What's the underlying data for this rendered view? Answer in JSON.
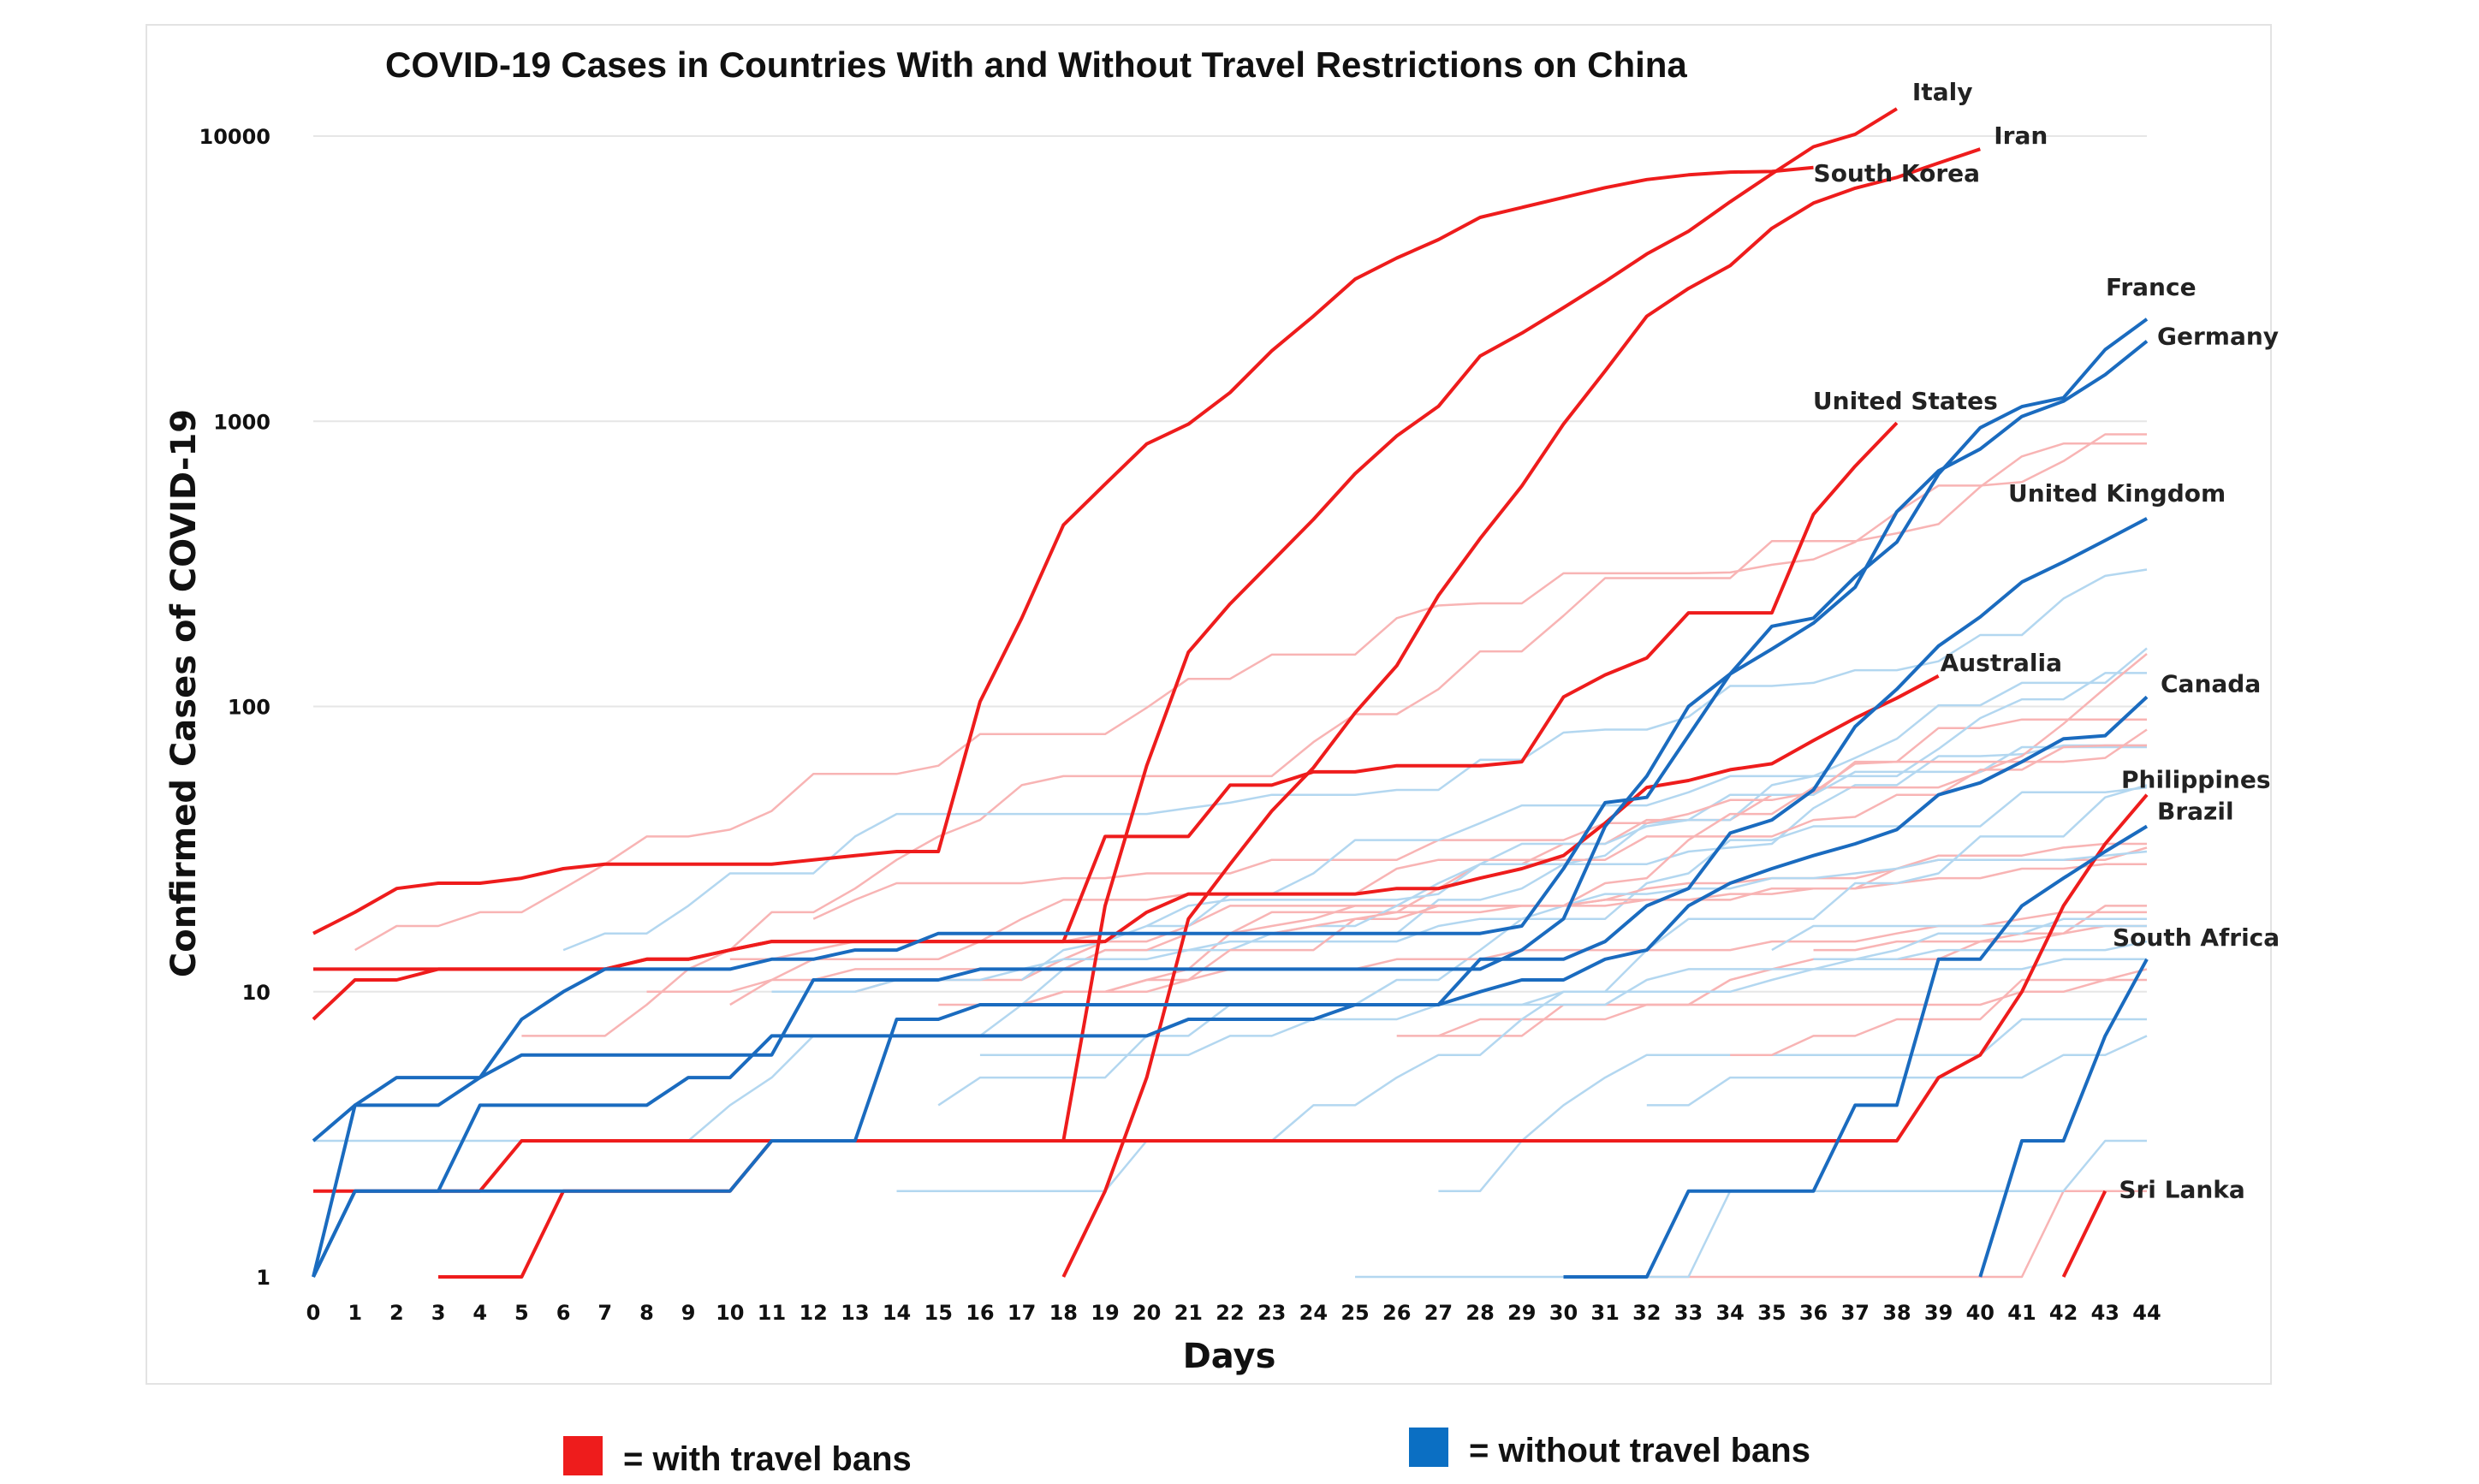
{
  "chart_data": {
    "type": "line",
    "title": "COVID-19 Cases in Countries With and Without Travel Restrictions on China",
    "xlabel": "Days",
    "ylabel": "Confirmed Cases of COVID-19",
    "y_scale": "log",
    "ylim": [
      1,
      13000
    ],
    "xlim": [
      0,
      44
    ],
    "x_ticks": [
      "0",
      "1",
      "2",
      "3",
      "4",
      "5",
      "6",
      "7",
      "8",
      "9",
      "10",
      "11",
      "12",
      "13",
      "14",
      "15",
      "16",
      "17",
      "18",
      "19",
      "20",
      "21",
      "22",
      "23",
      "24",
      "25",
      "26",
      "27",
      "28",
      "29",
      "30",
      "31",
      "32",
      "33",
      "34",
      "35",
      "36",
      "37",
      "38",
      "39",
      "40",
      "41",
      "42",
      "43",
      "44"
    ],
    "y_ticks": [
      "1",
      "10",
      "100",
      "1000",
      "10000"
    ],
    "grid": true,
    "colors": {
      "with_ban": "#ee1c1c",
      "without_ban": "#1a6bbf",
      "with_ban_light": "#f8b4b4",
      "without_ban_light": "#b3d7f0"
    },
    "legend": [
      {
        "label": "= with travel bans",
        "color": "#ee1c1c"
      },
      {
        "label": "= without travel bans",
        "color": "#0b6fc3"
      }
    ],
    "series": [
      {
        "label": "Italy",
        "group": "with",
        "x": [
          18,
          19,
          20,
          21,
          22,
          23,
          24,
          25,
          26,
          27,
          28,
          29,
          30,
          31,
          32,
          33,
          34,
          35,
          36,
          37,
          38
        ],
        "y": [
          3,
          20,
          62,
          155,
          229,
          322,
          453,
          655,
          888,
          1128,
          1694,
          2036,
          2502,
          3089,
          3858,
          4636,
          5883,
          7375,
          9172,
          10149,
          12462
        ]
      },
      {
        "label": "Iran",
        "group": "with",
        "x": [
          18,
          19,
          20,
          21,
          22,
          23,
          24,
          25,
          26,
          27,
          28,
          29,
          30,
          31,
          32,
          33,
          34,
          35,
          36,
          37,
          38,
          39,
          40
        ],
        "y": [
          1,
          2,
          5,
          18,
          28,
          43,
          61,
          95,
          139,
          245,
          388,
          593,
          978,
          1501,
          2336,
          2922,
          3513,
          4747,
          5823,
          6566,
          7161,
          8042,
          9000
        ]
      },
      {
        "label": "South Korea",
        "group": "with",
        "x": [
          0,
          1,
          2,
          3,
          4,
          5,
          6,
          7,
          8,
          9,
          10,
          11,
          12,
          13,
          14,
          15,
          16,
          17,
          18,
          19,
          20,
          21,
          22,
          23,
          24,
          25,
          26,
          27,
          28,
          29,
          30,
          31,
          32,
          33,
          34,
          35,
          36
        ],
        "y": [
          16,
          19,
          23,
          24,
          24,
          25,
          27,
          28,
          28,
          28,
          28,
          28,
          29,
          30,
          31,
          31,
          104,
          204,
          433,
          602,
          833,
          977,
          1261,
          1766,
          2337,
          3150,
          3736,
          4335,
          5186,
          5621,
          6088,
          6593,
          7041,
          7314,
          7478,
          7513,
          7755
        ]
      },
      {
        "label": "United States",
        "group": "with",
        "x": [
          0,
          1,
          2,
          3,
          4,
          5,
          6,
          7,
          8,
          9,
          10,
          11,
          12,
          13,
          14,
          15,
          16,
          17,
          18,
          19,
          20,
          21,
          22,
          23,
          24,
          25,
          26,
          27,
          28,
          29,
          30,
          31,
          32,
          33,
          34,
          35,
          36,
          37,
          38
        ],
        "y": [
          12,
          12,
          12,
          12,
          12,
          12,
          12,
          12,
          13,
          13,
          14,
          15,
          15,
          15,
          15,
          15,
          15,
          15,
          15,
          35,
          35,
          35,
          53,
          53,
          59,
          59,
          62,
          62,
          62,
          64,
          108,
          129,
          148,
          213,
          213,
          213,
          472,
          696,
          987
        ]
      },
      {
        "label": "Australia",
        "group": "with",
        "x": [
          0,
          1,
          2,
          3,
          4,
          5,
          6,
          7,
          8,
          9,
          10,
          11,
          12,
          13,
          14,
          15,
          16,
          17,
          18,
          19,
          20,
          21,
          22,
          23,
          24,
          25,
          26,
          27,
          28,
          29,
          30,
          31,
          32,
          33,
          34,
          35,
          36,
          37,
          38,
          39
        ],
        "y": [
          8,
          11,
          11,
          12,
          12,
          12,
          12,
          12,
          13,
          13,
          14,
          15,
          15,
          15,
          15,
          15,
          15,
          15,
          15,
          15,
          19,
          22,
          22,
          22,
          22,
          22,
          23,
          23,
          25,
          27,
          30,
          39,
          52,
          55,
          60,
          63,
          76,
          91,
          107,
          128
        ]
      },
      {
        "label": "Philippines",
        "group": "with",
        "x": [
          0,
          1,
          2,
          3,
          4,
          5,
          6,
          7,
          8,
          9,
          10,
          11,
          12,
          13,
          14,
          15,
          16,
          17,
          18,
          19,
          20,
          21,
          22,
          23,
          24,
          25,
          26,
          27,
          28,
          29,
          30,
          31,
          32,
          33,
          34,
          35,
          36,
          37,
          38,
          39,
          40,
          41,
          42,
          43,
          44
        ],
        "y": [
          2,
          2,
          2,
          2,
          2,
          3,
          3,
          3,
          3,
          3,
          3,
          3,
          3,
          3,
          3,
          3,
          3,
          3,
          3,
          3,
          3,
          3,
          3,
          3,
          3,
          3,
          3,
          3,
          3,
          3,
          3,
          3,
          3,
          3,
          3,
          3,
          3,
          3,
          3,
          5,
          6,
          10,
          20,
          33,
          49
        ]
      },
      {
        "label": "",
        "group": "with",
        "x": [
          3,
          4,
          5,
          6,
          7,
          8,
          9,
          10,
          11,
          12,
          13,
          14,
          15,
          16,
          17,
          18,
          19,
          20,
          21,
          22,
          23,
          24,
          25,
          26,
          27,
          28,
          29,
          30,
          31
        ],
        "y": [
          1,
          1,
          1,
          2,
          2,
          2,
          2,
          2,
          3,
          3,
          3,
          3,
          3,
          3,
          3,
          3,
          3,
          3,
          3,
          3,
          3,
          3,
          3,
          3,
          3,
          3,
          3,
          3,
          3
        ]
      },
      {
        "label": "Sri Lanka",
        "group": "with",
        "x": [
          42,
          43
        ],
        "y": [
          1,
          2
        ]
      },
      {
        "label": "France",
        "group": "without",
        "x": [
          0,
          1,
          2,
          3,
          4,
          5,
          6,
          7,
          8,
          9,
          10,
          11,
          12,
          13,
          14,
          15,
          16,
          17,
          18,
          19,
          20,
          21,
          22,
          23,
          24,
          25,
          26,
          27,
          28,
          29,
          30,
          31,
          32,
          33,
          34,
          35,
          36,
          37,
          38,
          39,
          40,
          41,
          42,
          43,
          44
        ],
        "y": [
          3,
          4,
          5,
          5,
          5,
          6,
          6,
          6,
          6,
          6,
          6,
          6,
          11,
          11,
          11,
          11,
          12,
          12,
          12,
          12,
          12,
          12,
          12,
          12,
          12,
          12,
          12,
          12,
          12,
          14,
          18,
          38,
          57,
          100,
          130,
          191,
          204,
          285,
          377,
          653,
          949,
          1126,
          1209,
          1784,
          2281
        ]
      },
      {
        "label": "Germany",
        "group": "without",
        "x": [
          0,
          1,
          2,
          3,
          4,
          5,
          6,
          7,
          8,
          9,
          10,
          11,
          12,
          13,
          14,
          15,
          16,
          17,
          18,
          19,
          20,
          21,
          22,
          23,
          24,
          25,
          26,
          27,
          28,
          29,
          30,
          31,
          32,
          33,
          34,
          35,
          36,
          37,
          38,
          39,
          40,
          41,
          42,
          43,
          44
        ],
        "y": [
          1,
          4,
          4,
          4,
          5,
          8,
          10,
          12,
          12,
          12,
          12,
          13,
          13,
          14,
          14,
          16,
          16,
          16,
          16,
          16,
          16,
          16,
          16,
          16,
          16,
          16,
          16,
          16,
          16,
          17,
          27,
          46,
          48,
          79,
          130,
          159,
          196,
          262,
          482,
          670,
          799,
          1040,
          1176,
          1457,
          1908
        ]
      },
      {
        "label": "United Kingdom",
        "group": "without",
        "x": [
          0,
          1,
          2,
          3,
          4,
          5,
          6,
          7,
          8,
          9,
          10,
          11,
          12,
          13,
          14,
          15,
          16,
          17,
          18,
          19,
          20,
          21,
          22,
          23,
          24,
          25,
          26,
          27,
          28,
          29,
          30,
          31,
          32,
          33,
          34,
          35,
          36,
          37,
          38,
          39,
          40,
          41,
          42,
          43,
          44
        ],
        "y": [
          1,
          2,
          2,
          2,
          2,
          2,
          2,
          2,
          2,
          2,
          2,
          3,
          3,
          3,
          8,
          8,
          9,
          9,
          9,
          9,
          9,
          9,
          9,
          9,
          9,
          9,
          9,
          9,
          13,
          13,
          13,
          15,
          20,
          23,
          36,
          40,
          51,
          85,
          115,
          163,
          206,
          273,
          321,
          382,
          456
        ]
      },
      {
        "label": "Canada",
        "group": "without",
        "x": [
          0,
          1,
          2,
          3,
          4,
          5,
          6,
          7,
          8,
          9,
          10,
          11,
          12,
          13,
          14,
          15,
          16,
          17,
          18,
          19,
          20,
          21,
          22,
          23,
          24,
          25,
          26,
          27,
          28,
          29,
          30,
          31,
          32,
          33,
          34,
          35,
          36,
          37,
          38,
          39,
          40,
          41,
          42,
          43,
          44
        ],
        "y": [
          1,
          2,
          2,
          2,
          4,
          4,
          4,
          4,
          4,
          5,
          5,
          7,
          7,
          7,
          7,
          7,
          7,
          7,
          7,
          7,
          7,
          8,
          8,
          8,
          8,
          9,
          9,
          9,
          10,
          11,
          11,
          13,
          14,
          20,
          24,
          27,
          30,
          33,
          37,
          49,
          54,
          64,
          77,
          79,
          108
        ]
      },
      {
        "label": "Brazil",
        "group": "without",
        "x": [
          30,
          31,
          32,
          33,
          34,
          35,
          36,
          37,
          38,
          39,
          40,
          41,
          42,
          43,
          44
        ],
        "y": [
          1,
          1,
          1,
          2,
          2,
          2,
          2,
          4,
          4,
          13,
          13,
          20,
          25,
          31,
          38
        ]
      },
      {
        "label": "South Africa",
        "group": "without",
        "x": [
          40,
          41,
          42,
          43,
          44
        ],
        "y": [
          1,
          3,
          3,
          7,
          13
        ]
      }
    ],
    "country_labels": [
      {
        "label": "Italy"
      },
      {
        "label": "Iran"
      },
      {
        "label": "South Korea"
      },
      {
        "label": "France"
      },
      {
        "label": "Germany"
      },
      {
        "label": "United States"
      },
      {
        "label": "United Kingdom"
      },
      {
        "label": "Australia"
      },
      {
        "label": "Canada"
      },
      {
        "label": "Philippines"
      },
      {
        "label": "Brazil"
      },
      {
        "label": "South Africa"
      },
      {
        "label": "Sri Lanka"
      }
    ]
  }
}
